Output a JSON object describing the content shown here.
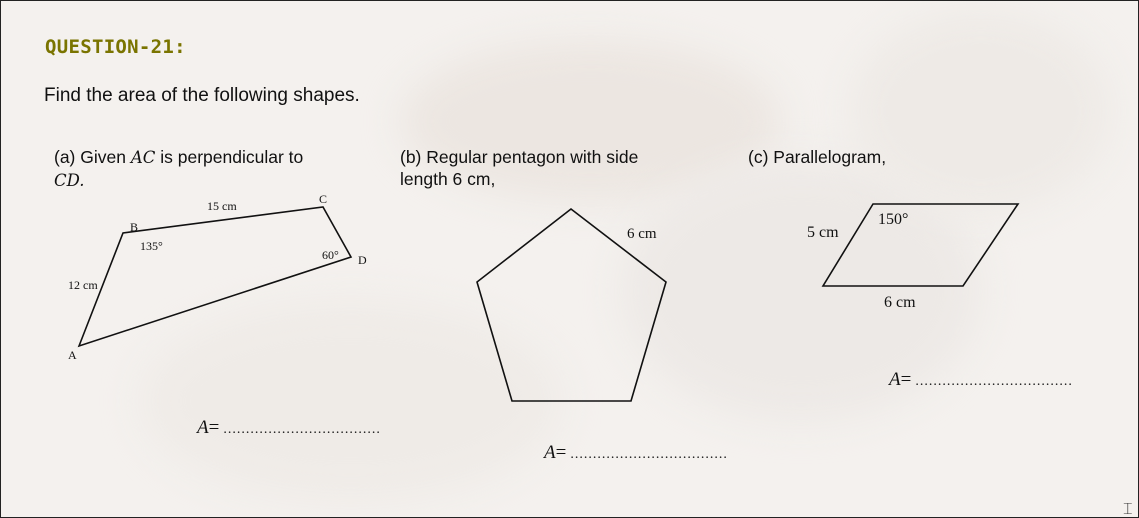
{
  "question": {
    "title": "QUESTION-21:",
    "instruction": "Find the area of the following shapes."
  },
  "part_a": {
    "caption_prefix": "(a) Given ",
    "caption_ac": "AC",
    "caption_mid": " is perpendicular to",
    "caption_cd": "CD",
    "caption_end": ".",
    "vertex_a": "A",
    "vertex_b": "B",
    "vertex_c": "C",
    "vertex_d": "D",
    "side_ab": "12 cm",
    "side_bc": "15 cm",
    "angle_b": "135°",
    "angle_d": "60°",
    "answer_var": "A",
    "answer_eq": "=",
    "answer_blank": "..................................."
  },
  "part_b": {
    "caption_line1": "(b) Regular pentagon with side",
    "caption_line2": "length 6 cm,",
    "side_label": "6 cm",
    "answer_var": "A",
    "answer_eq": "=",
    "answer_blank": "..................................."
  },
  "part_c": {
    "caption": "(c) Parallelogram,",
    "side_left": "5 cm",
    "side_bottom": "6 cm",
    "angle": "150°",
    "answer_var": "A",
    "answer_eq": "=",
    "answer_blank": "..................................."
  },
  "cursor_icon": "text-cursor-icon"
}
